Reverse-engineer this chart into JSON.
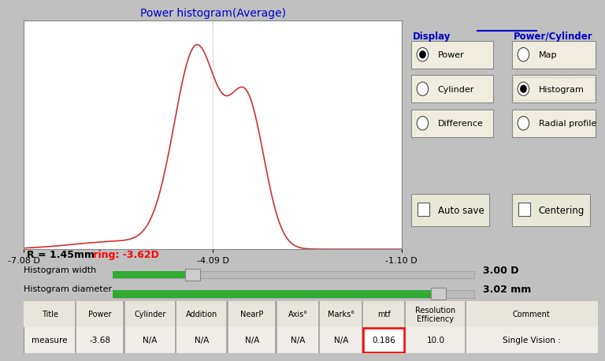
{
  "title": "Power histogram(Average)",
  "title_color": "#0000cc",
  "bg_color": "#c0c0c0",
  "chart_bg": "#ffffff",
  "x_labels": [
    "-7.08 D",
    "-4.09 D",
    "-1.10 D"
  ],
  "x_values": [
    -7.08,
    -4.09,
    -1.1
  ],
  "curve_color": "#cc3333",
  "display_label": "Display",
  "display_line_color": "#0000cc",
  "display_buttons": [
    "Power",
    "Cylinder",
    "Difference"
  ],
  "power_cylinder_label": "Power/Cylinder",
  "power_cylinder_color": "#0000cc",
  "pc_buttons": [
    "Map",
    "Histogram",
    "Radial profile"
  ],
  "auto_save": "Auto save",
  "centering": "Centering",
  "info_bg": "#ffffcc",
  "info_text_black": "R = 1.45mm",
  "info_text_red": " ring: -3.62D",
  "slider1_label": "Histogram width",
  "slider1_value": "3.00 D",
  "slider2_label": "Histogram diameter",
  "slider2_value": "3.02 mm",
  "table_headers": [
    "Title",
    "Power",
    "Cylinder",
    "Addition",
    "NearP",
    "Axis°",
    "Marks°",
    "mtf",
    "Resolution\nEfficiency",
    "Comment"
  ],
  "table_row": [
    "measure",
    "-3.68",
    "N/A",
    "N/A",
    "N/A",
    "N/A",
    "N/A",
    "0.186",
    "10.0",
    "Single Vision :"
  ],
  "mtf_col_index": 7,
  "highlight_color": "#ff0000",
  "table_bg": "#f0ede8",
  "slider_green": "#33aa33"
}
